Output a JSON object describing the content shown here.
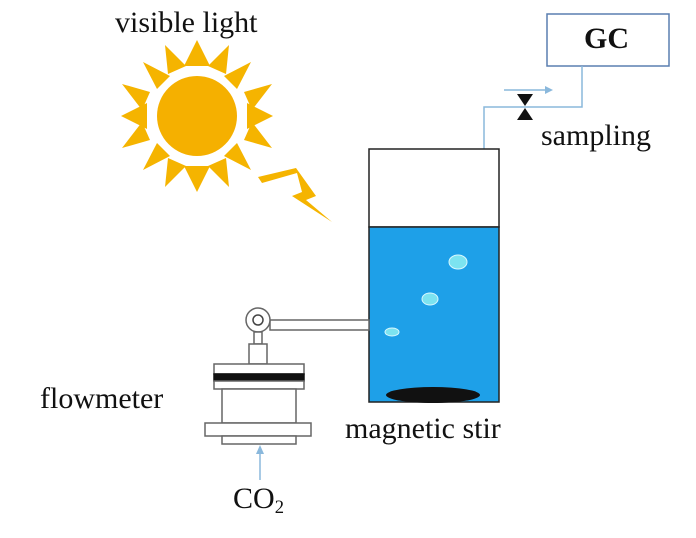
{
  "labels": {
    "visible_light": "visible light",
    "gc": "GC",
    "sampling": "sampling",
    "flowmeter": "flowmeter",
    "magnetic_stir": "magnetic stir",
    "co2_main": "CO",
    "co2_sub": "2"
  },
  "colors": {
    "sun": "#f5b400",
    "sun_core": "#f5b000",
    "lightning": "#f5b400",
    "water": "#1ea0e8",
    "bubble": "#7ce3f0",
    "pipe": "#7fb0d8",
    "stirrer": "#111111"
  }
}
